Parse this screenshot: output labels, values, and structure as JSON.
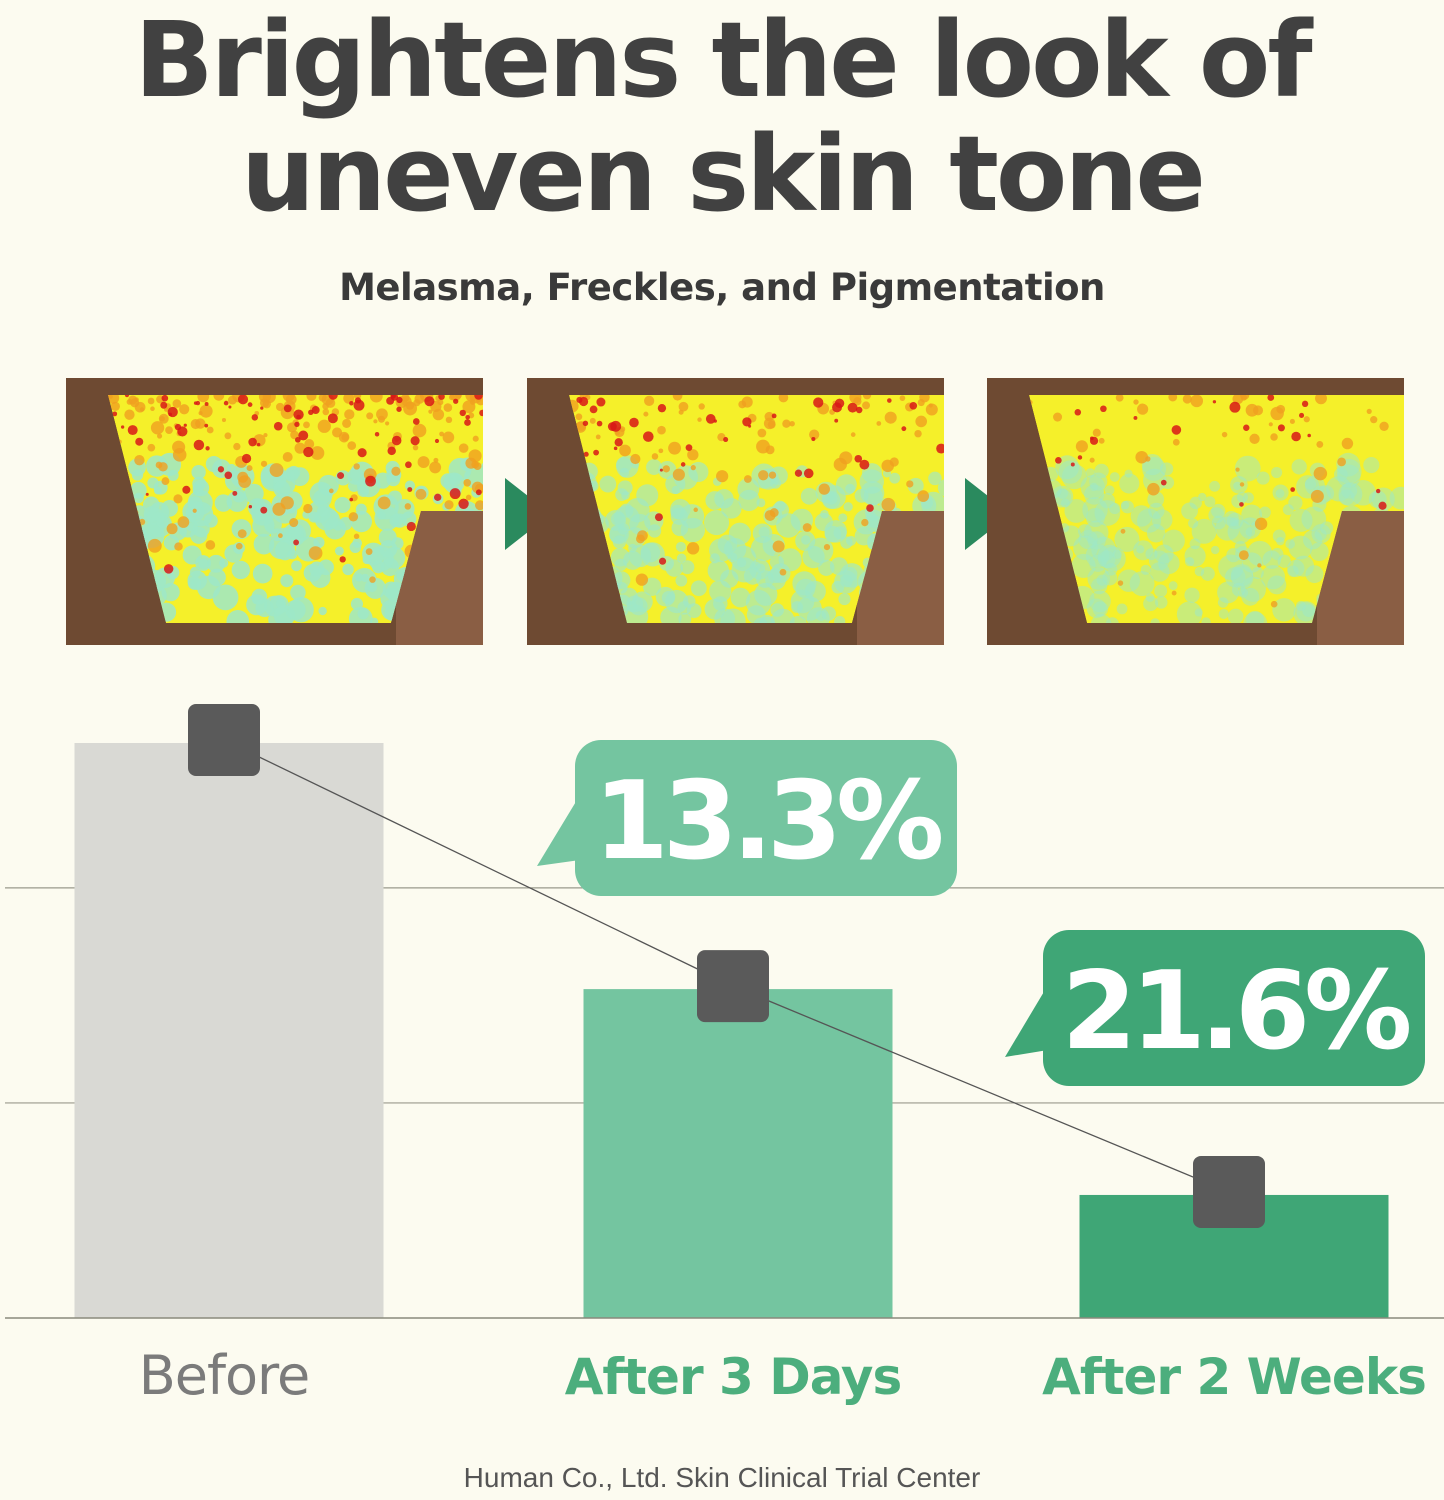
{
  "title_line1": "Brightens the look of",
  "title_line2": "uneven skin tone",
  "subtitle": "Melasma, Freckles, and Pigmentation",
  "images": [
    {
      "stage": "Before",
      "pigment_level": "high"
    },
    {
      "stage": "After 3 Days",
      "pigment_level": "medium"
    },
    {
      "stage": "After 2 Weeks",
      "pigment_level": "low"
    }
  ],
  "arrow_color": "#2a8a5e",
  "chart_data": {
    "type": "bar",
    "categories": [
      "Before",
      "After 3 Days",
      "After 2 Weeks"
    ],
    "values": [
      100,
      57.2,
      21.4
    ],
    "ylim": [
      0,
      100
    ],
    "gridlines": [
      37.4,
      74.8
    ],
    "grid": true,
    "trend_line": true,
    "colors": [
      "#d9d9d4",
      "#74c5a0",
      "#3fa676"
    ],
    "label_colors": [
      "#7b7b7b",
      "#4cae7d",
      "#4cae7d"
    ],
    "marker_color": "#5a5a5a",
    "annotations": [
      {
        "category": "After 3 Days",
        "text": "13.3%",
        "color": "#74c5a0"
      },
      {
        "category": "After 2 Weeks",
        "text": "21.6%",
        "color": "#3fa676"
      }
    ]
  },
  "footer": "Human Co., Ltd. Skin Clinical Trial Center"
}
